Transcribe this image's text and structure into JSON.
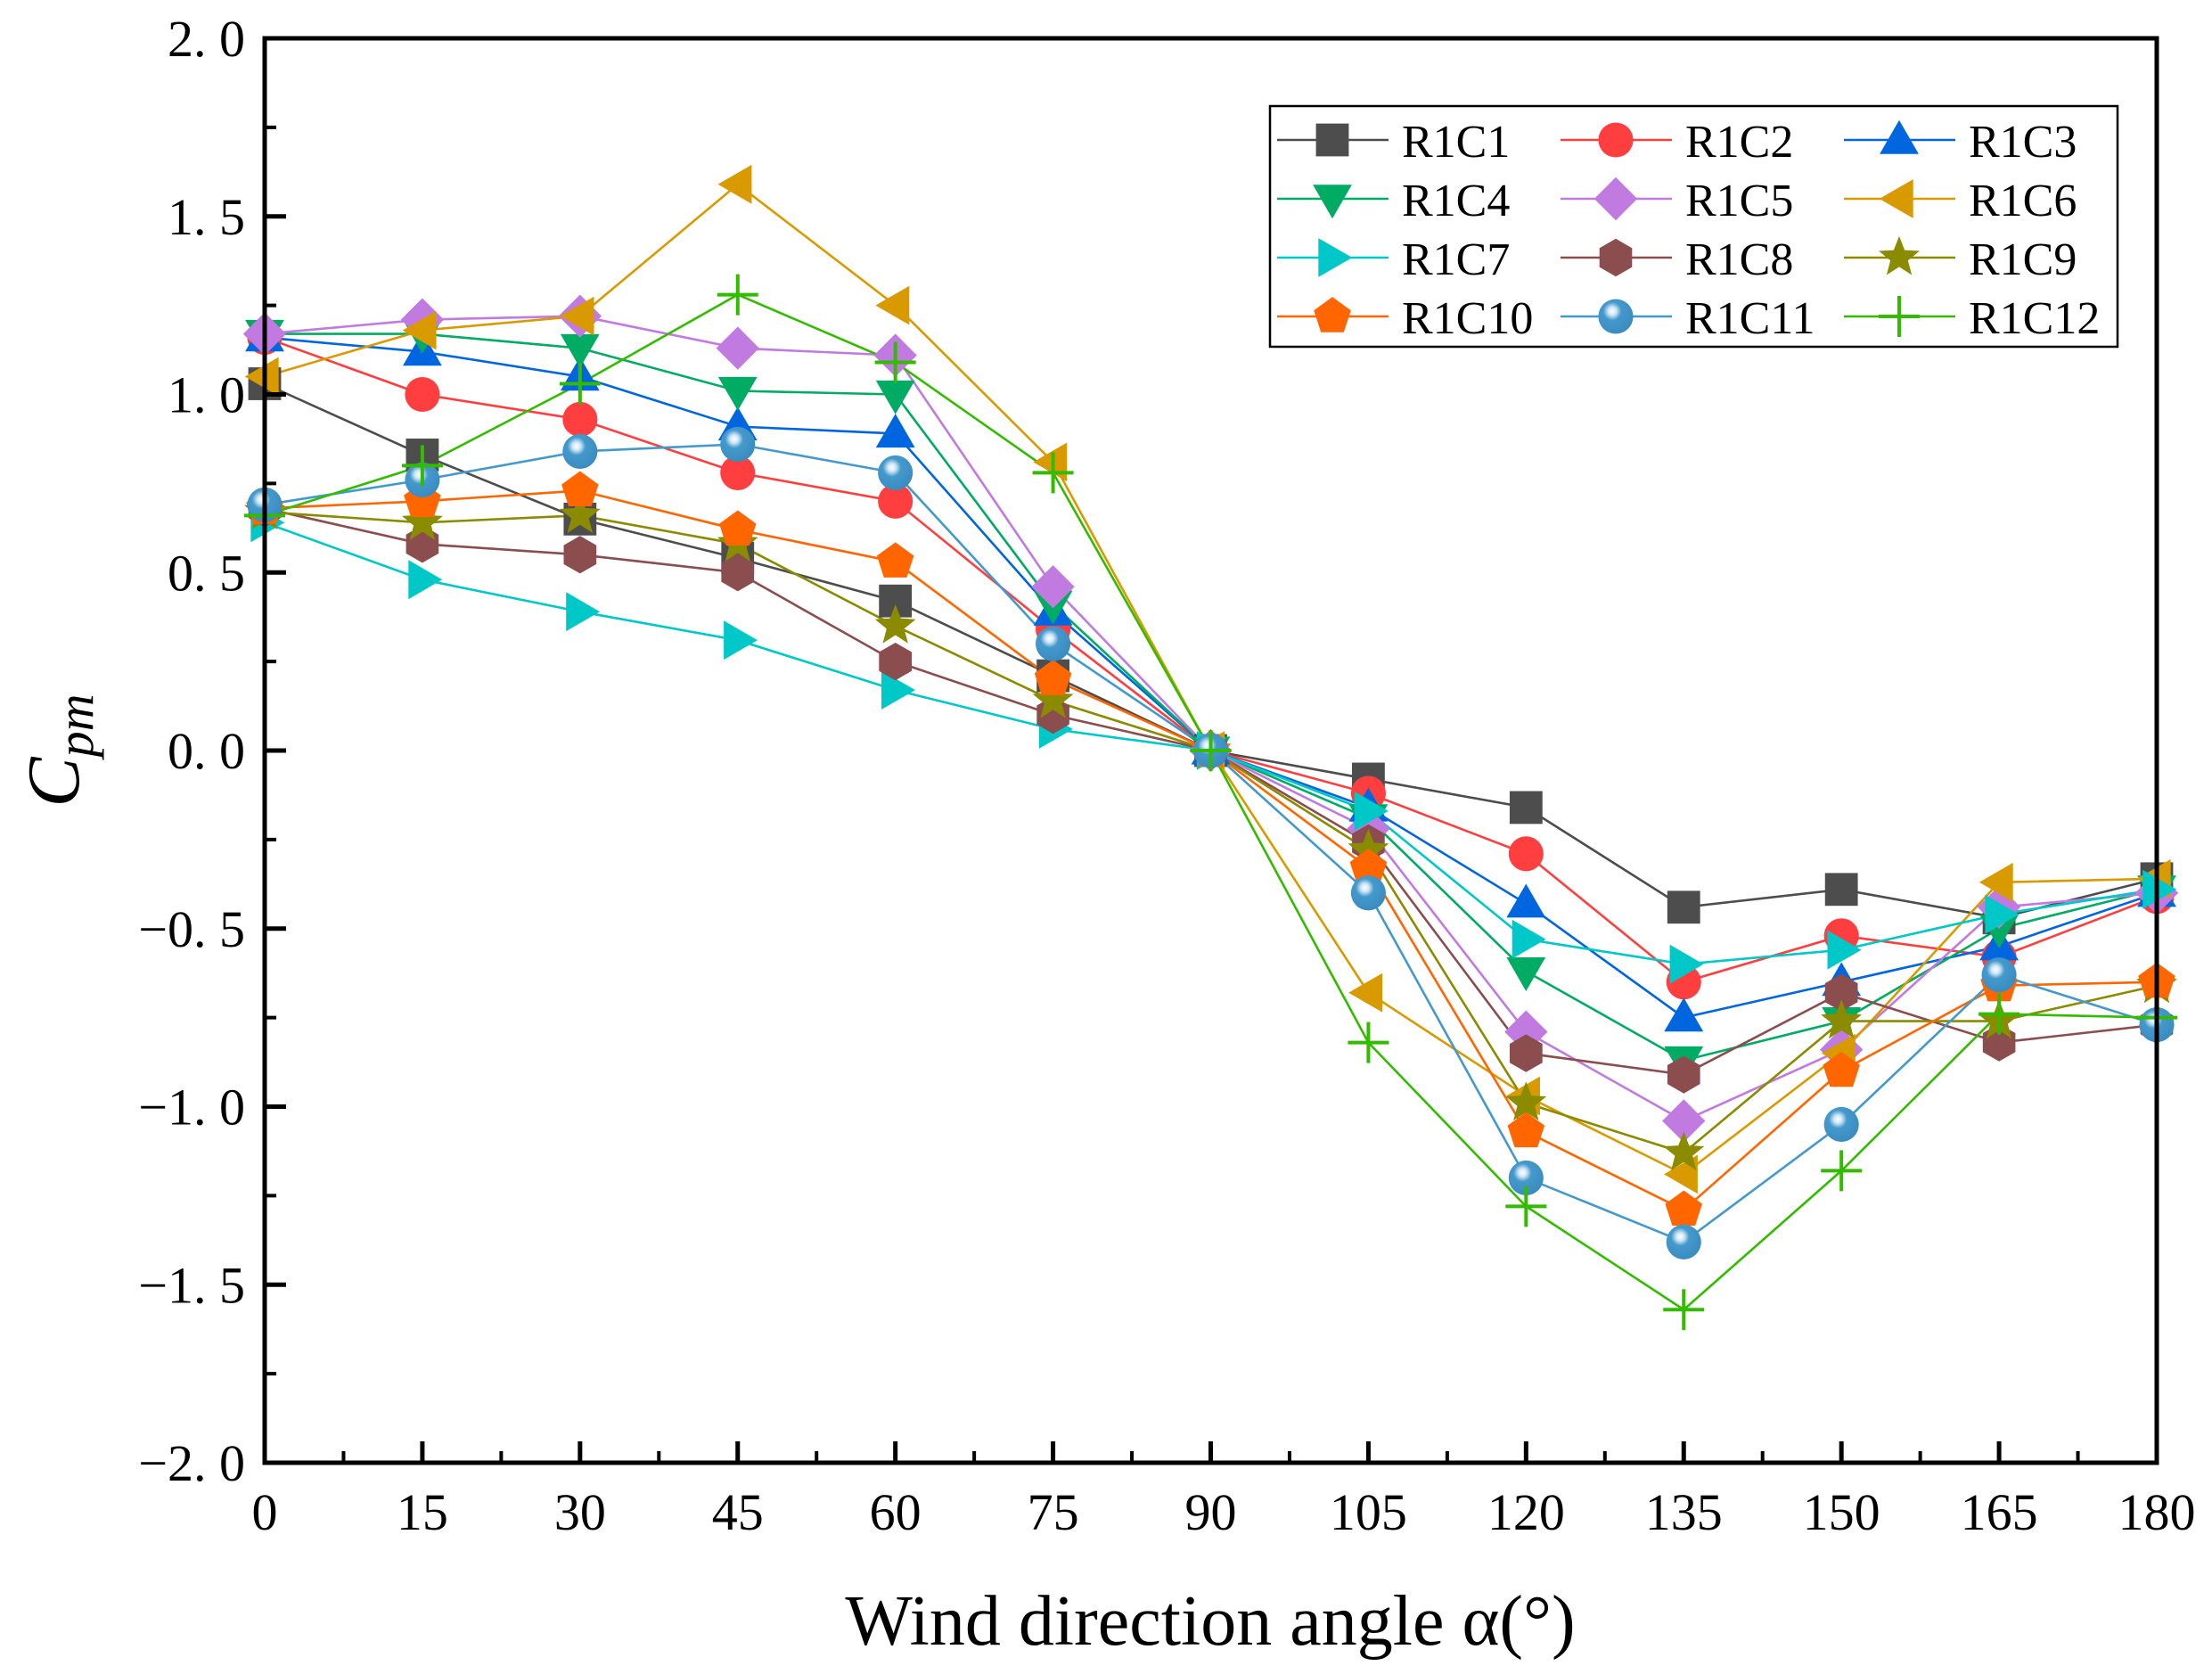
{
  "chart_data": {
    "type": "line",
    "title": "",
    "xlabel": "Wind direction angle α(°)",
    "ylabel": "C",
    "ylabel_sub": "pm",
    "xlim": [
      0,
      180
    ],
    "ylim": [
      -2.0,
      2.0
    ],
    "x": [
      0,
      15,
      30,
      45,
      60,
      75,
      90,
      105,
      120,
      135,
      150,
      165,
      180
    ],
    "xticks": [
      0,
      15,
      30,
      45,
      60,
      75,
      90,
      105,
      120,
      135,
      150,
      165,
      180
    ],
    "xtick_labels": [
      "0",
      "15",
      "30",
      "45",
      "60",
      "75",
      "90",
      "105",
      "120",
      "135",
      "150",
      "165",
      "180"
    ],
    "yticks": [
      2.0,
      1.5,
      1.0,
      0.5,
      0.0,
      -0.5,
      -1.0,
      -1.5,
      -2.0
    ],
    "ytick_labels": [
      "2. 0",
      "1. 5",
      "1. 0",
      "0. 5",
      "0. 0",
      "−0. 5",
      "−1. 0",
      "−1. 5",
      "−2. 0"
    ],
    "grid": false,
    "legend_position": "top-right",
    "series": [
      {
        "name": "R1C1",
        "color": "#4d4d4d",
        "marker": "square",
        "values": [
          1.03,
          0.83,
          0.65,
          0.54,
          0.42,
          0.21,
          0.0,
          -0.08,
          -0.16,
          -0.44,
          -0.39,
          -0.47,
          -0.36
        ]
      },
      {
        "name": "R1C2",
        "color": "#ff3f3f",
        "marker": "circle",
        "values": [
          1.16,
          1.0,
          0.93,
          0.78,
          0.7,
          0.34,
          0.0,
          -0.12,
          -0.29,
          -0.65,
          -0.52,
          -0.58,
          -0.41
        ]
      },
      {
        "name": "R1C3",
        "color": "#0066e0",
        "marker": "triangle-up",
        "values": [
          1.16,
          1.12,
          1.05,
          0.91,
          0.89,
          0.39,
          0.0,
          -0.16,
          -0.43,
          -0.75,
          -0.65,
          -0.55,
          -0.4
        ]
      },
      {
        "name": "R1C4",
        "color": "#00ac63",
        "marker": "triangle-down",
        "values": [
          1.17,
          1.17,
          1.13,
          1.01,
          1.0,
          0.41,
          0.0,
          -0.19,
          -0.62,
          -0.87,
          -0.76,
          -0.5,
          -0.39
        ]
      },
      {
        "name": "R1C5",
        "color": "#c07ae0",
        "marker": "diamond",
        "values": [
          1.17,
          1.21,
          1.22,
          1.13,
          1.11,
          0.46,
          0.0,
          -0.22,
          -0.79,
          -1.04,
          -0.84,
          -0.44,
          -0.4
        ]
      },
      {
        "name": "R1C6",
        "color": "#d99a00",
        "marker": "triangle-left",
        "values": [
          1.05,
          1.18,
          1.22,
          1.59,
          1.25,
          0.81,
          0.0,
          -0.68,
          -0.97,
          -1.19,
          -0.85,
          -0.37,
          -0.36
        ]
      },
      {
        "name": "R1C7",
        "color": "#00c8c8",
        "marker": "triangle-right",
        "values": [
          0.64,
          0.48,
          0.39,
          0.31,
          0.17,
          0.06,
          0.0,
          -0.17,
          -0.53,
          -0.6,
          -0.56,
          -0.46,
          -0.39
        ]
      },
      {
        "name": "R1C8",
        "color": "#8b4d4d",
        "marker": "hexagon",
        "values": [
          0.68,
          0.58,
          0.55,
          0.5,
          0.25,
          0.1,
          0.0,
          -0.26,
          -0.85,
          -0.91,
          -0.68,
          -0.82,
          -0.77
        ]
      },
      {
        "name": "R1C9",
        "color": "#8b8b00",
        "marker": "star",
        "values": [
          0.67,
          0.64,
          0.66,
          0.58,
          0.35,
          0.14,
          0.0,
          -0.28,
          -0.99,
          -1.13,
          -0.76,
          -0.76,
          -0.66
        ]
      },
      {
        "name": "R1C10",
        "color": "#ff6600",
        "marker": "pentagon",
        "values": [
          0.68,
          0.7,
          0.73,
          0.62,
          0.53,
          0.2,
          0.0,
          -0.33,
          -1.07,
          -1.29,
          -0.9,
          -0.66,
          -0.65
        ]
      },
      {
        "name": "R1C11",
        "color": "#4499cc",
        "marker": "sphere",
        "values": [
          0.69,
          0.76,
          0.84,
          0.86,
          0.78,
          0.3,
          0.0,
          -0.4,
          -1.2,
          -1.38,
          -1.05,
          -0.63,
          -0.77
        ]
      },
      {
        "name": "R1C12",
        "color": "#33bb00",
        "marker": "plus",
        "values": [
          0.66,
          0.8,
          1.03,
          1.28,
          1.09,
          0.78,
          0.0,
          -0.82,
          -1.28,
          -1.57,
          -1.18,
          -0.74,
          -0.75
        ]
      }
    ]
  }
}
